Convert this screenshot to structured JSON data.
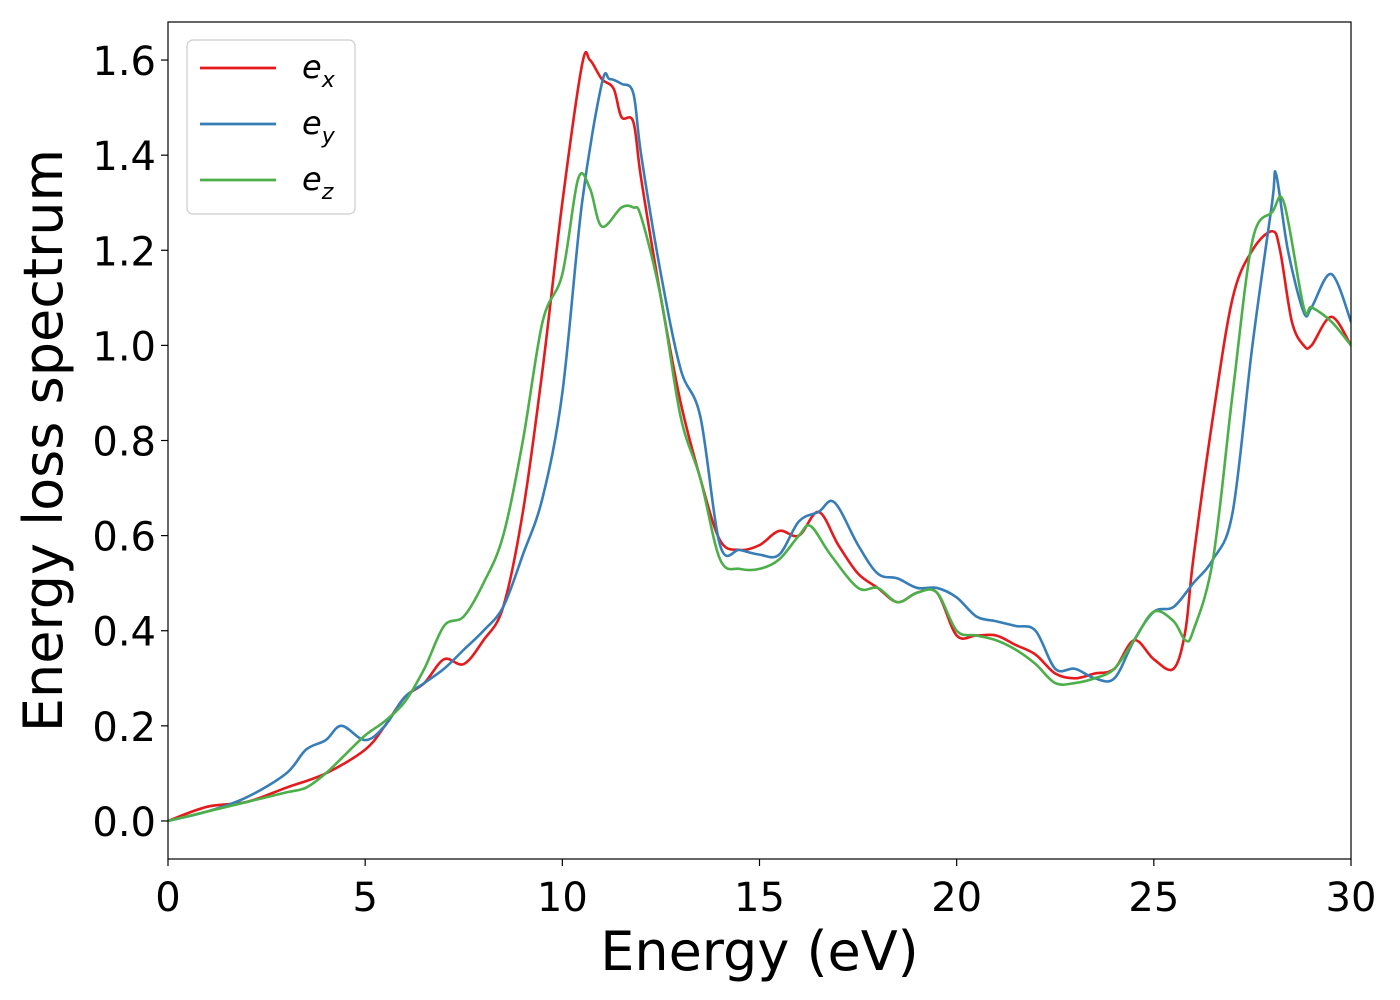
{
  "chart_data": {
    "type": "line",
    "title": "",
    "xlabel": "Energy (eV)",
    "ylabel": "Energy loss spectrum",
    "xlim": [
      0,
      30
    ],
    "ylim": [
      -0.08,
      1.68
    ],
    "xticks": [
      0,
      5,
      10,
      15,
      20,
      25,
      30
    ],
    "yticks": [
      0.0,
      0.2,
      0.4,
      0.6,
      0.8,
      1.0,
      1.2,
      1.4,
      1.6
    ],
    "xtick_labels": [
      "0",
      "5",
      "10",
      "15",
      "20",
      "25",
      "30"
    ],
    "ytick_labels": [
      "0.0",
      "0.2",
      "0.4",
      "0.6",
      "0.8",
      "1.0",
      "1.2",
      "1.4",
      "1.6"
    ],
    "grid": false,
    "legend_position": "top-left",
    "series": [
      {
        "name": "e_x",
        "label_base": "e",
        "label_sub": "x",
        "color": "#e41a1c",
        "x": [
          0,
          1,
          2,
          3,
          4,
          5,
          5.5,
          6,
          6.5,
          7,
          7.5,
          8,
          8.5,
          9,
          9.5,
          10,
          10.5,
          10.7,
          11,
          11.3,
          11.5,
          11.8,
          12,
          12.5,
          13,
          13.5,
          14,
          14.5,
          15,
          15.5,
          16,
          16.5,
          17,
          17.5,
          18,
          18.5,
          19,
          19.5,
          20,
          20.5,
          21,
          21.5,
          22,
          22.5,
          23,
          23.5,
          24,
          24.5,
          25,
          25.5,
          25.8,
          26,
          26.5,
          27,
          27.5,
          28,
          28.2,
          28.5,
          28.8,
          29,
          29.5,
          30
        ],
        "y": [
          0.0,
          0.03,
          0.04,
          0.07,
          0.1,
          0.15,
          0.2,
          0.26,
          0.29,
          0.34,
          0.33,
          0.38,
          0.45,
          0.65,
          0.95,
          1.3,
          1.59,
          1.6,
          1.56,
          1.54,
          1.48,
          1.47,
          1.35,
          1.1,
          0.88,
          0.72,
          0.59,
          0.57,
          0.58,
          0.61,
          0.6,
          0.65,
          0.58,
          0.52,
          0.49,
          0.46,
          0.48,
          0.48,
          0.39,
          0.39,
          0.39,
          0.37,
          0.35,
          0.31,
          0.3,
          0.31,
          0.32,
          0.38,
          0.34,
          0.32,
          0.4,
          0.55,
          0.85,
          1.1,
          1.2,
          1.24,
          1.2,
          1.05,
          1.0,
          1.0,
          1.06,
          1.0
        ]
      },
      {
        "name": "e_y",
        "label_base": "e",
        "label_sub": "y",
        "color": "#377eb8",
        "x": [
          0,
          1,
          2,
          3,
          3.5,
          4,
          4.4,
          5,
          5.5,
          6,
          6.5,
          7,
          7.5,
          8,
          8.5,
          9,
          9.5,
          10,
          10.5,
          11,
          11.2,
          11.5,
          11.8,
          12,
          12.5,
          13,
          13.5,
          14,
          14.5,
          15,
          15.5,
          16,
          16.5,
          16.9,
          17.5,
          18,
          18.5,
          19,
          19.5,
          20,
          20.5,
          21,
          21.5,
          22,
          22.5,
          23,
          23.5,
          24,
          24.5,
          25,
          25.5,
          26,
          26.5,
          27,
          27.5,
          28,
          28.1,
          28.4,
          28.8,
          29,
          29.5,
          30
        ],
        "y": [
          0.0,
          0.02,
          0.05,
          0.1,
          0.15,
          0.17,
          0.2,
          0.17,
          0.2,
          0.26,
          0.29,
          0.32,
          0.36,
          0.4,
          0.45,
          0.56,
          0.68,
          0.9,
          1.3,
          1.55,
          1.56,
          1.55,
          1.53,
          1.4,
          1.15,
          0.95,
          0.85,
          0.58,
          0.57,
          0.56,
          0.56,
          0.63,
          0.65,
          0.67,
          0.58,
          0.52,
          0.51,
          0.49,
          0.49,
          0.47,
          0.43,
          0.42,
          0.41,
          0.4,
          0.32,
          0.32,
          0.3,
          0.3,
          0.38,
          0.44,
          0.45,
          0.5,
          0.55,
          0.65,
          1.0,
          1.3,
          1.36,
          1.2,
          1.07,
          1.08,
          1.15,
          1.05
        ]
      },
      {
        "name": "e_z",
        "label_base": "e",
        "label_sub": "z",
        "color": "#4daf4a",
        "x": [
          0,
          1,
          2,
          3,
          3.5,
          4,
          4.5,
          5,
          5.5,
          6,
          6.5,
          7,
          7.5,
          8,
          8.5,
          9,
          9.5,
          10,
          10.4,
          10.7,
          11,
          11.5,
          11.8,
          12,
          12.5,
          13,
          13.5,
          14,
          14.5,
          15,
          15.5,
          16,
          16.3,
          16.8,
          17.5,
          18,
          18.5,
          19,
          19.5,
          20,
          20.5,
          21,
          21.5,
          22,
          22.5,
          23,
          23.5,
          24,
          24.5,
          25,
          25.5,
          25.8,
          26,
          26.5,
          27,
          27.5,
          28,
          28.3,
          28.8,
          29,
          29.5,
          30
        ],
        "y": [
          0.0,
          0.02,
          0.04,
          0.06,
          0.07,
          0.1,
          0.14,
          0.18,
          0.21,
          0.25,
          0.32,
          0.41,
          0.43,
          0.5,
          0.6,
          0.8,
          1.05,
          1.15,
          1.35,
          1.33,
          1.25,
          1.29,
          1.29,
          1.27,
          1.1,
          0.85,
          0.72,
          0.55,
          0.53,
          0.53,
          0.55,
          0.6,
          0.62,
          0.56,
          0.49,
          0.49,
          0.46,
          0.48,
          0.48,
          0.4,
          0.39,
          0.38,
          0.36,
          0.33,
          0.29,
          0.29,
          0.3,
          0.32,
          0.38,
          0.44,
          0.42,
          0.38,
          0.4,
          0.55,
          0.9,
          1.22,
          1.28,
          1.3,
          1.08,
          1.08,
          1.05,
          1.0
        ]
      }
    ]
  }
}
